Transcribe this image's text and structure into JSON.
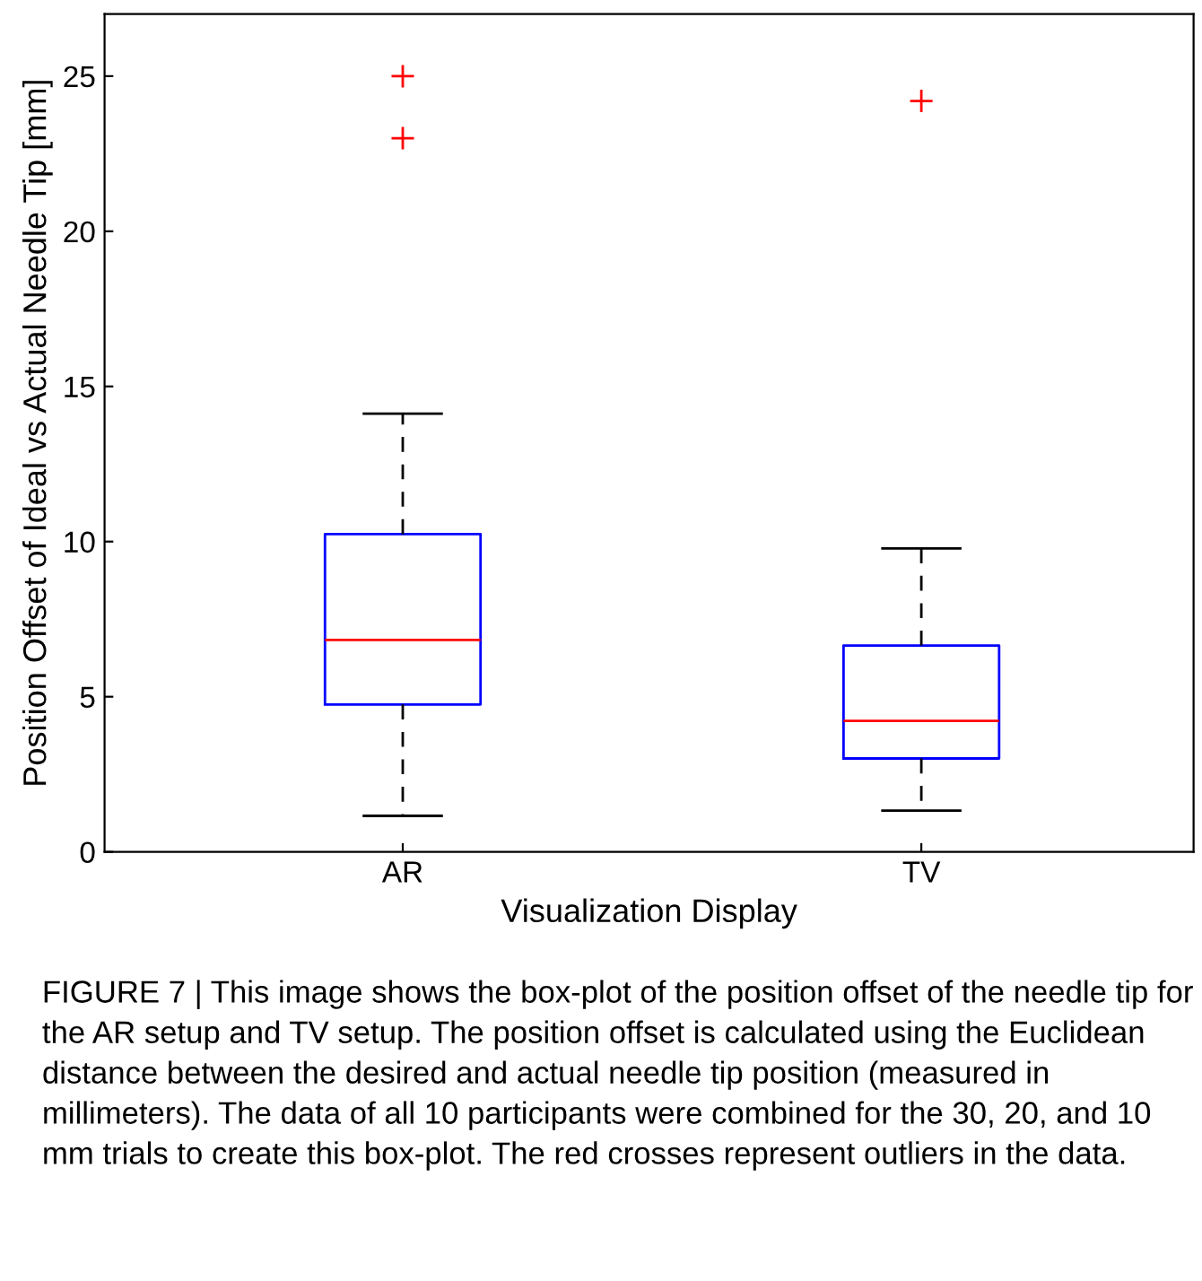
{
  "chart_data": {
    "type": "box",
    "xlabel": "Visualization Display",
    "ylabel": "Position Offset of Ideal vs Actual Needle Tip [mm]",
    "categories": [
      "AR",
      "TV"
    ],
    "boxes": [
      {
        "low": 1.16,
        "q1": 4.75,
        "median": 6.83,
        "q3": 10.24,
        "high": 14.12,
        "outliers": [
          25.0,
          23.0
        ]
      },
      {
        "low": 1.33,
        "q1": 3.01,
        "median": 4.22,
        "q3": 6.65,
        "high": 9.78,
        "outliers": [
          24.2
        ]
      }
    ],
    "color": "#0000ff",
    "ylim": [
      0,
      27
    ],
    "yticks": [
      0,
      5,
      10,
      15,
      20,
      25
    ],
    "grid": false,
    "marker": "cross",
    "annotations": [
      "FIGURE 7 | This image shows the box-plot of the position offset of the needle tip for the AR setup and TV setup. The position offset is calculated using the Euclidean distance between the desired and actual needle tip position (measured in millimeters). The data of all 10 participants were combined for the 30, 20, and 10 mm trials to create this box-plot. The red crosses represent outliers in the data."
    ]
  }
}
